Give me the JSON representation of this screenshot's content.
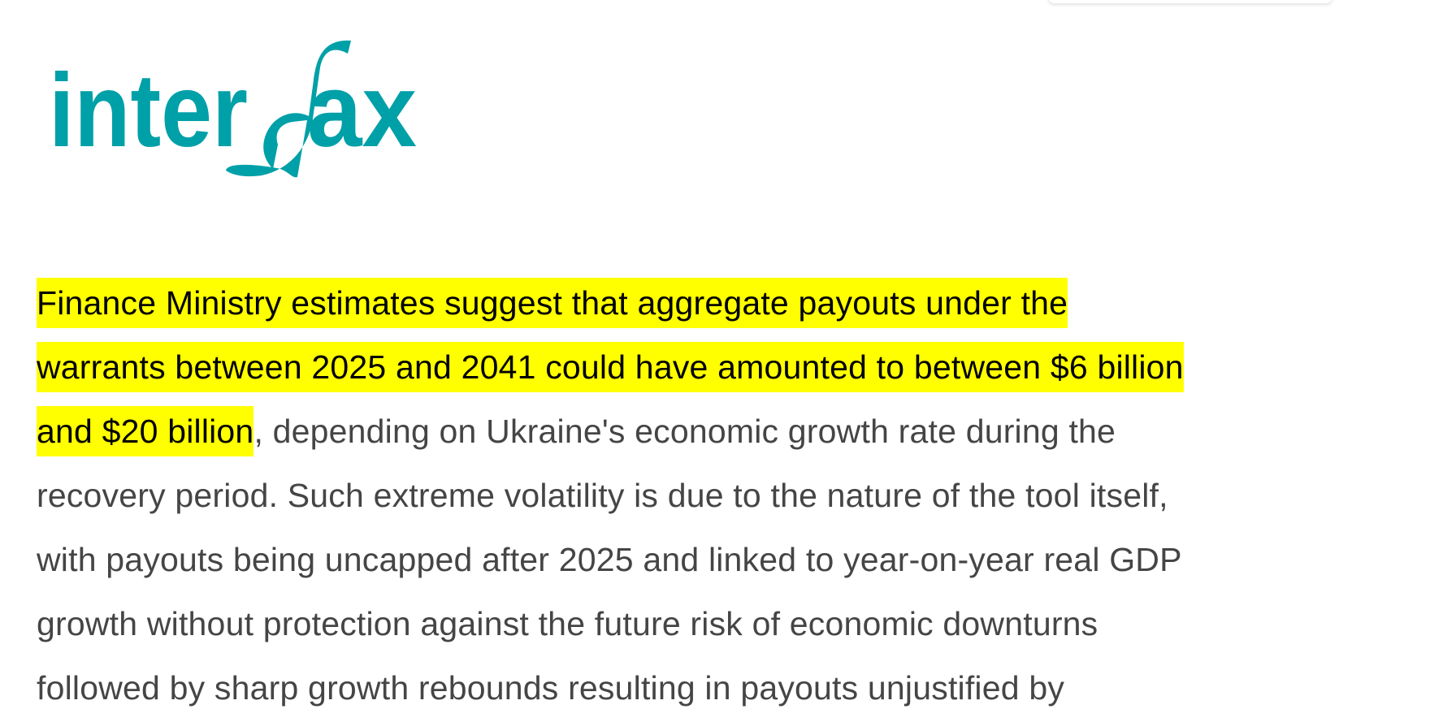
{
  "logo": {
    "text": "interfax",
    "color": "#00a0a8"
  },
  "article": {
    "highlight_color": "#ffff00",
    "lines": [
      {
        "highlighted": "Finance Ministry estimates suggest that aggregate payouts under the",
        "rest": ""
      },
      {
        "highlighted": "warrants between 2025 and 2041 could have amounted to between $6 billion",
        "rest": ""
      },
      {
        "highlighted": "and $20 billion",
        "rest": ", depending on Ukraine's economic growth rate during the"
      },
      {
        "highlighted": "",
        "rest": "recovery period. Such extreme volatility is due to the nature of the tool itself,"
      },
      {
        "highlighted": "",
        "rest": "with payouts being uncapped after 2025 and linked to year-on-year real GDP"
      },
      {
        "highlighted": "",
        "rest": "growth without protection against the future risk of economic downturns"
      },
      {
        "highlighted": "",
        "rest": "followed by sharp growth rebounds resulting in payouts unjustified by"
      }
    ]
  }
}
